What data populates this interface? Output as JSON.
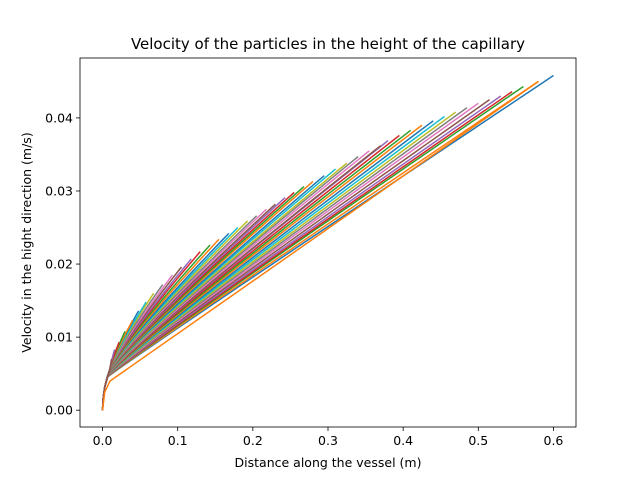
{
  "chart_data": {
    "type": "line",
    "title": "Velocity of the particles in the height of the capillary",
    "xlabel": "Distance along the vessel (m)",
    "ylabel": "Velocity in the hight direction (m/s)",
    "xlim": [
      -0.03,
      0.63
    ],
    "ylim": [
      -0.0023,
      0.0482
    ],
    "xticks": [
      0.0,
      0.1,
      0.2,
      0.3,
      0.4,
      0.5,
      0.6
    ],
    "xtick_labels": [
      "0.0",
      "0.1",
      "0.2",
      "0.3",
      "0.4",
      "0.5",
      "0.6"
    ],
    "yticks": [
      0.0,
      0.01,
      0.02,
      0.03,
      0.04
    ],
    "ytick_labels": [
      "0.00",
      "0.01",
      "0.02",
      "0.03",
      "0.04"
    ],
    "grid": false,
    "legend": "none",
    "series_model": {
      "description": "Many particle trajectories; each rises steeply from the origin then follows a near-linear or concave path to its end point",
      "end_points": [
        [
          0.6,
          0.0458
        ],
        [
          0.58,
          0.045
        ],
        [
          0.56,
          0.0443
        ],
        [
          0.545,
          0.0436
        ],
        [
          0.53,
          0.043
        ],
        [
          0.515,
          0.0425
        ],
        [
          0.5,
          0.042
        ],
        [
          0.485,
          0.0414
        ],
        [
          0.47,
          0.0408
        ],
        [
          0.455,
          0.0402
        ],
        [
          0.44,
          0.0396
        ],
        [
          0.425,
          0.039
        ],
        [
          0.41,
          0.0383
        ],
        [
          0.395,
          0.0376
        ],
        [
          0.38,
          0.0369
        ],
        [
          0.37,
          0.0362
        ],
        [
          0.355,
          0.0355
        ],
        [
          0.34,
          0.0347
        ],
        [
          0.325,
          0.0338
        ],
        [
          0.31,
          0.033
        ],
        [
          0.295,
          0.0321
        ],
        [
          0.28,
          0.0313
        ],
        [
          0.268,
          0.0306
        ],
        [
          0.255,
          0.0298
        ],
        [
          0.243,
          0.0291
        ],
        [
          0.23,
          0.0282
        ],
        [
          0.218,
          0.0275
        ],
        [
          0.205,
          0.0266
        ],
        [
          0.193,
          0.0259
        ],
        [
          0.18,
          0.025
        ],
        [
          0.168,
          0.0242
        ],
        [
          0.155,
          0.0234
        ],
        [
          0.143,
          0.0226
        ],
        [
          0.13,
          0.0217
        ],
        [
          0.118,
          0.0207
        ],
        [
          0.105,
          0.0196
        ],
        [
          0.093,
          0.0185
        ],
        [
          0.08,
          0.0172
        ],
        [
          0.068,
          0.016
        ],
        [
          0.058,
          0.0148
        ],
        [
          0.048,
          0.0136
        ],
        [
          0.04,
          0.0123
        ],
        [
          0.03,
          0.0108
        ],
        [
          0.022,
          0.0093
        ],
        [
          0.016,
          0.0083
        ],
        [
          0.012,
          0.007
        ]
      ],
      "colors": [
        "#1f77b4",
        "#ff7f0e",
        "#2ca02c",
        "#d62728",
        "#9467bd",
        "#8c564b",
        "#e377c2",
        "#7f7f7f",
        "#bcbd22",
        "#17becf"
      ]
    },
    "annotations": [
      {
        "series_index": 1,
        "note": "orange trajectory starting with sharp break near (0.01, 0.004)",
        "points": [
          [
            0.0,
            0.0
          ],
          [
            0.003,
            0.0025
          ],
          [
            0.01,
            0.004
          ],
          [
            0.58,
            0.045
          ]
        ]
      }
    ]
  }
}
